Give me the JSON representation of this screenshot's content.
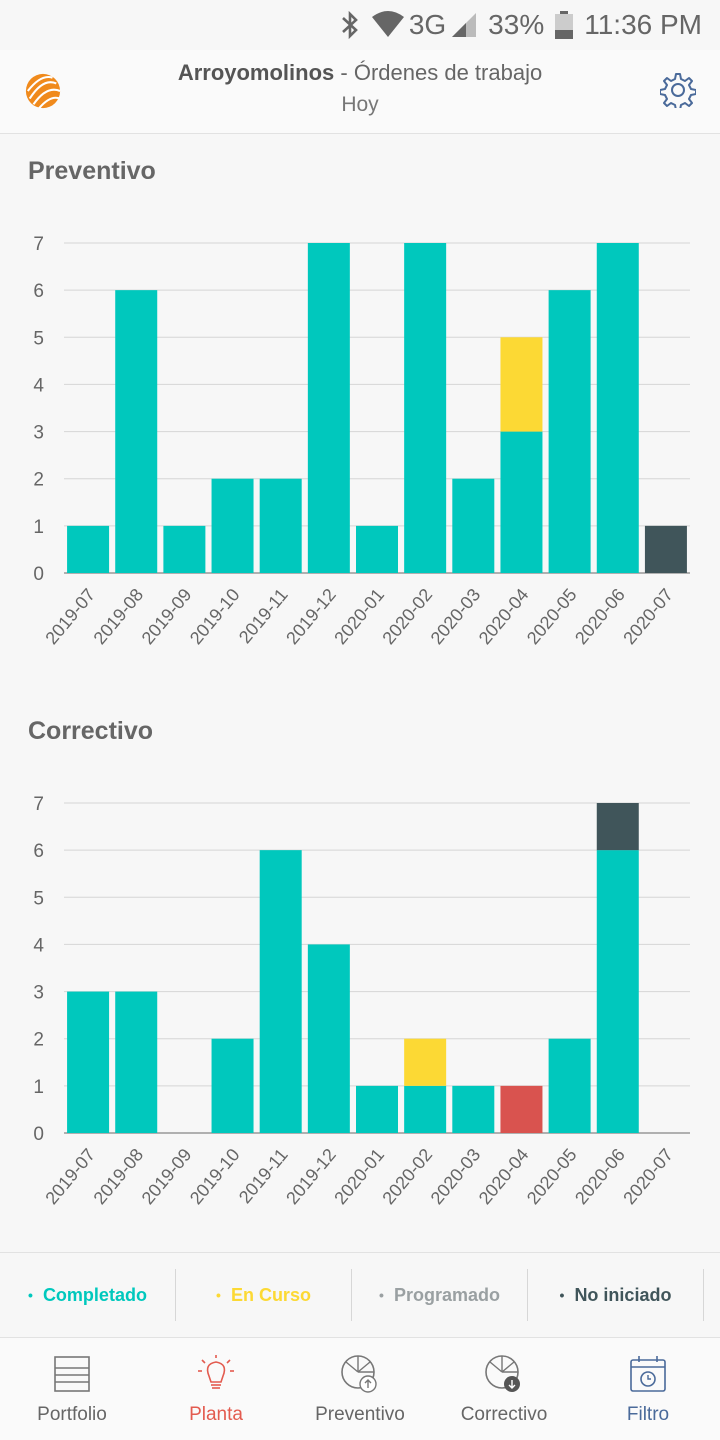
{
  "status_bar": {
    "network": "3G",
    "battery": "33%",
    "time": "11:36 PM",
    "icons": [
      "bluetooth-icon",
      "wifi-icon",
      "signal-icon",
      "battery-icon"
    ]
  },
  "header": {
    "plant_name": "Arroyomolinos",
    "separator": " - ",
    "section": "Órdenes de trabajo",
    "date_filter": "Hoy",
    "logo_icon": "sun-globe-logo",
    "settings_icon": "gear-icon"
  },
  "colors": {
    "completado": "#00c8bd",
    "en_curso": "#fcd934",
    "programado": "#9aa0a2",
    "no_iniciado": "#40555a",
    "atrasado": "#d9534f",
    "active_nav": "#e35b4f",
    "filter_nav": "#4a6a9a"
  },
  "sections": [
    {
      "title": "Preventivo"
    },
    {
      "title": "Correctivo"
    }
  ],
  "chart_data": [
    {
      "type": "bar",
      "stacked": true,
      "title": "Preventivo",
      "categories": [
        "2019-07",
        "2019-08",
        "2019-09",
        "2019-10",
        "2019-11",
        "2019-12",
        "2020-01",
        "2020-02",
        "2020-03",
        "2020-04",
        "2020-05",
        "2020-06",
        "2020-07"
      ],
      "ylim": [
        0,
        7
      ],
      "yticks": [
        0,
        1,
        2,
        3,
        4,
        5,
        6,
        7
      ],
      "grid": true,
      "series": [
        {
          "key": "completado",
          "color": "#00c8bd",
          "values": [
            1,
            6,
            1,
            2,
            2,
            7,
            1,
            7,
            2,
            3,
            6,
            7,
            0
          ]
        },
        {
          "key": "en_curso",
          "color": "#fcd934",
          "values": [
            0,
            0,
            0,
            0,
            0,
            0,
            0,
            0,
            0,
            2,
            0,
            0,
            0
          ]
        },
        {
          "key": "atrasado",
          "color": "#d9534f",
          "values": [
            0,
            0,
            0,
            0,
            0,
            0,
            0,
            0,
            0,
            0,
            0,
            0,
            0
          ]
        },
        {
          "key": "no_iniciado",
          "color": "#40555a",
          "values": [
            0,
            0,
            0,
            0,
            0,
            0,
            0,
            0,
            0,
            0,
            0,
            0,
            1
          ]
        }
      ]
    },
    {
      "type": "bar",
      "stacked": true,
      "title": "Correctivo",
      "categories": [
        "2019-07",
        "2019-08",
        "2019-09",
        "2019-10",
        "2019-11",
        "2019-12",
        "2020-01",
        "2020-02",
        "2020-03",
        "2020-04",
        "2020-05",
        "2020-06",
        "2020-07"
      ],
      "ylim": [
        0,
        7
      ],
      "yticks": [
        0,
        1,
        2,
        3,
        4,
        5,
        6,
        7
      ],
      "grid": true,
      "series": [
        {
          "key": "completado",
          "color": "#00c8bd",
          "values": [
            3,
            3,
            0,
            2,
            6,
            4,
            1,
            1,
            1,
            0,
            2,
            6,
            0
          ]
        },
        {
          "key": "en_curso",
          "color": "#fcd934",
          "values": [
            0,
            0,
            0,
            0,
            0,
            0,
            0,
            1,
            0,
            0,
            0,
            0,
            0
          ]
        },
        {
          "key": "atrasado",
          "color": "#d9534f",
          "values": [
            0,
            0,
            0,
            0,
            0,
            0,
            0,
            0,
            0,
            1,
            0,
            0,
            0
          ]
        },
        {
          "key": "no_iniciado",
          "color": "#40555a",
          "values": [
            0,
            0,
            0,
            0,
            0,
            0,
            0,
            0,
            0,
            0,
            0,
            1,
            0
          ]
        }
      ]
    }
  ],
  "legend": [
    {
      "bullet": "•",
      "label": "Completado",
      "color": "#00c8bd"
    },
    {
      "bullet": "•",
      "label": "En Curso",
      "color": "#fcd934"
    },
    {
      "bullet": "•",
      "label": "Programado",
      "color": "#9aa0a2"
    },
    {
      "bullet": "•",
      "label": "No iniciado",
      "color": "#40555a"
    }
  ],
  "nav": [
    {
      "label": "Portfolio",
      "icon": "portfolio-list-icon",
      "state": "default"
    },
    {
      "label": "Planta",
      "icon": "lightbulb-icon",
      "state": "active"
    },
    {
      "label": "Preventivo",
      "icon": "preventive-gauge-icon",
      "state": "default"
    },
    {
      "label": "Correctivo",
      "icon": "corrective-gauge-icon",
      "state": "default"
    },
    {
      "label": "Filtro",
      "icon": "calendar-clock-icon",
      "state": "filter"
    }
  ]
}
